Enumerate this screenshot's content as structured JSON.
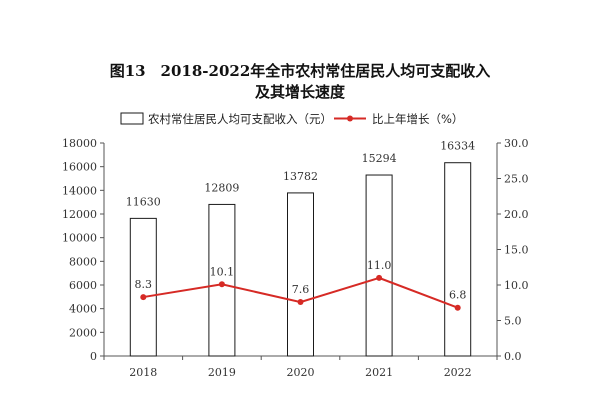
{
  "chart_data": {
    "type": "bar+line",
    "title_line1": "图13　2018-2022年全市农村常住居民人均可支配收入",
    "title_line2": "及其增长速度",
    "categories": [
      "2018",
      "2019",
      "2020",
      "2021",
      "2022"
    ],
    "series": [
      {
        "name": "农村常住居民人均可支配收入（元）",
        "type": "bar",
        "axis": "left",
        "values": [
          11630,
          12809,
          13782,
          15294,
          16334
        ],
        "labels": [
          "11630",
          "12809",
          "13782",
          "15294",
          "16334"
        ]
      },
      {
        "name": "比上年增长（%）",
        "type": "line",
        "axis": "right",
        "values": [
          8.3,
          10.1,
          7.6,
          11.0,
          6.8
        ],
        "labels": [
          "8.3",
          "10.1",
          "7.6",
          "11.0",
          "6.8"
        ]
      }
    ],
    "y_left": {
      "lim": [
        0,
        18000
      ],
      "ticks": [
        0,
        2000,
        4000,
        6000,
        8000,
        10000,
        12000,
        14000,
        16000,
        18000
      ],
      "tick_labels": [
        "0",
        "2000",
        "4000",
        "6000",
        "8000",
        "10000",
        "12000",
        "14000",
        "16000",
        "18000"
      ]
    },
    "y_right": {
      "lim": [
        0,
        30
      ],
      "ticks": [
        0,
        5,
        10,
        15,
        20,
        25,
        30
      ],
      "tick_labels": [
        "0.0",
        "5.0",
        "10.0",
        "15.0",
        "20.0",
        "25.0",
        "30.0"
      ]
    },
    "legend_position": "top",
    "colors": {
      "bar_fill": "#ffffff",
      "bar_stroke": "#1a1a1a",
      "line": "#d62a25",
      "axis": "#555555"
    }
  }
}
